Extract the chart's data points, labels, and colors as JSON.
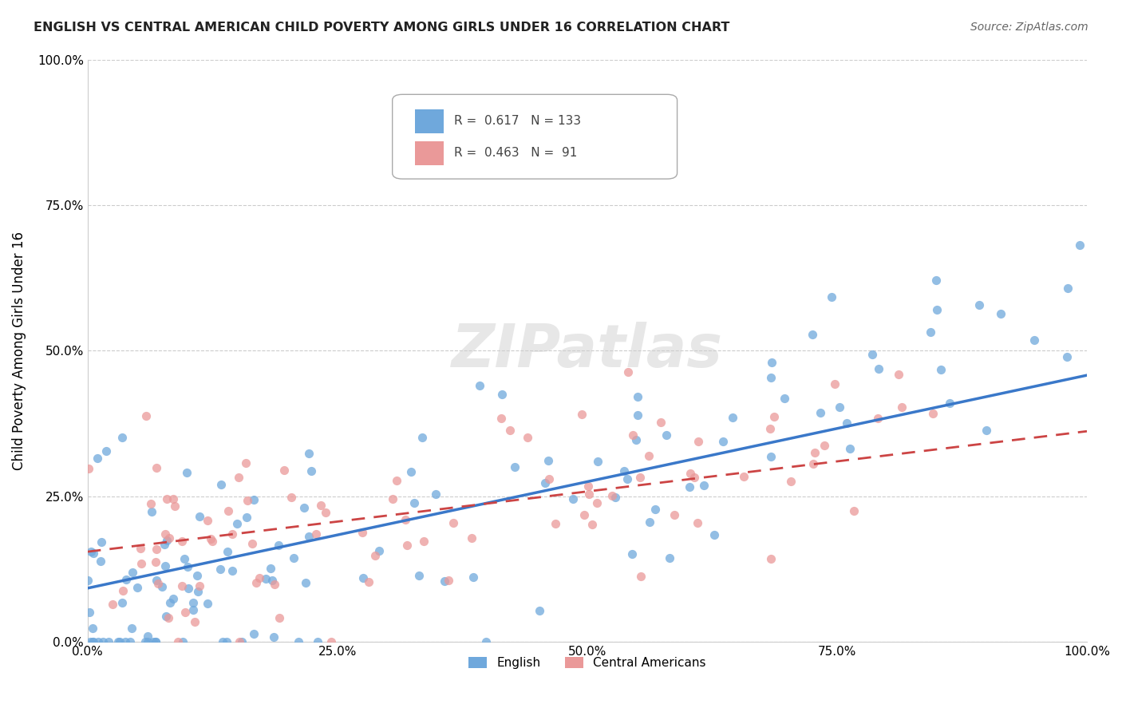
{
  "title": "ENGLISH VS CENTRAL AMERICAN CHILD POVERTY AMONG GIRLS UNDER 16 CORRELATION CHART",
  "source": "Source: ZipAtlas.com",
  "ylabel": "Child Poverty Among Girls Under 16",
  "xlim": [
    0,
    1.0
  ],
  "ylim": [
    0,
    1.0
  ],
  "xtick_labels": [
    "0.0%",
    "25.0%",
    "50.0%",
    "75.0%",
    "100.0%"
  ],
  "xtick_vals": [
    0.0,
    0.25,
    0.5,
    0.75,
    1.0
  ],
  "ytick_labels": [
    "0.0%",
    "25.0%",
    "50.0%",
    "75.0%",
    "100.0%"
  ],
  "ytick_vals": [
    0.0,
    0.25,
    0.5,
    0.75,
    1.0
  ],
  "english_color": "#6fa8dc",
  "central_color": "#ea9999",
  "english_R": 0.617,
  "english_N": 133,
  "central_R": 0.463,
  "central_N": 91,
  "background_color": "#ffffff",
  "grid_color": "#cccccc",
  "legend_english": "English",
  "legend_central": "Central Americans"
}
